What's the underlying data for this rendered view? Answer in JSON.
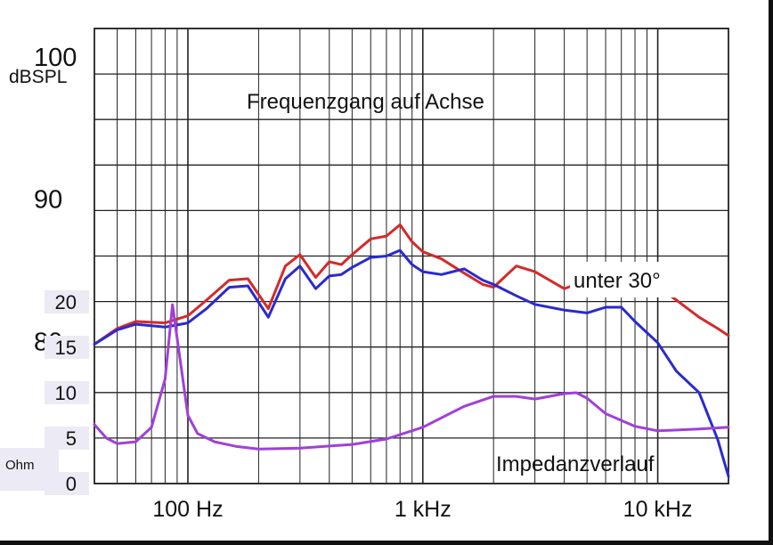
{
  "chart_data": {
    "type": "line",
    "x_scale": "log",
    "x_range": [
      40,
      20000
    ],
    "grid": true,
    "x_tick_labels": [
      {
        "x": 100,
        "label": "100 Hz"
      },
      {
        "x": 1000,
        "label": "1 kHz"
      },
      {
        "x": 10000,
        "label": "10 kHz"
      }
    ],
    "left_axis": {
      "spl_ticks": [
        {
          "value": 100,
          "label": "100"
        },
        {
          "value": 90,
          "label": "90"
        },
        {
          "value": 80,
          "label": "80"
        }
      ],
      "spl_unit": "dBSPL",
      "spl_range": [
        70,
        102
      ],
      "ohm_ticks": [
        {
          "value": 20,
          "label": "20"
        },
        {
          "value": 15,
          "label": "15"
        },
        {
          "value": 10,
          "label": "10"
        },
        {
          "value": 5,
          "label": "5"
        },
        {
          "value": 0,
          "label": "0"
        }
      ],
      "ohm_unit": "Ohm",
      "ohm_range": [
        0,
        20
      ]
    },
    "series": [
      {
        "name": "Frequenzgang auf Achse",
        "color": "#d42a2a",
        "axis": "spl",
        "points": [
          [
            40,
            79.8
          ],
          [
            50,
            80.9
          ],
          [
            60,
            81.4
          ],
          [
            80,
            81.3
          ],
          [
            100,
            81.8
          ],
          [
            120,
            82.9
          ],
          [
            150,
            84.3
          ],
          [
            180,
            84.4
          ],
          [
            220,
            82.3
          ],
          [
            260,
            85.3
          ],
          [
            300,
            86.1
          ],
          [
            350,
            84.5
          ],
          [
            400,
            85.6
          ],
          [
            450,
            85.4
          ],
          [
            500,
            86.1
          ],
          [
            600,
            87.2
          ],
          [
            700,
            87.4
          ],
          [
            800,
            88.2
          ],
          [
            900,
            87.0
          ],
          [
            1000,
            86.3
          ],
          [
            1200,
            85.8
          ],
          [
            1500,
            84.8
          ],
          [
            1800,
            84.0
          ],
          [
            2000,
            83.8
          ],
          [
            2500,
            85.3
          ],
          [
            3000,
            84.9
          ],
          [
            4000,
            83.7
          ],
          [
            5000,
            84.3
          ],
          [
            6000,
            85.3
          ],
          [
            7000,
            85.3
          ],
          [
            8000,
            84.6
          ],
          [
            10000,
            83.9
          ],
          [
            12000,
            82.9
          ],
          [
            15000,
            81.7
          ],
          [
            18000,
            80.9
          ],
          [
            20000,
            80.4
          ]
        ]
      },
      {
        "name": "unter 30°",
        "color": "#2a2ad0",
        "axis": "spl",
        "points": [
          [
            40,
            79.8
          ],
          [
            50,
            80.8
          ],
          [
            60,
            81.2
          ],
          [
            80,
            81.0
          ],
          [
            100,
            81.3
          ],
          [
            120,
            82.3
          ],
          [
            150,
            83.8
          ],
          [
            180,
            83.9
          ],
          [
            220,
            81.7
          ],
          [
            260,
            84.4
          ],
          [
            300,
            85.3
          ],
          [
            350,
            83.7
          ],
          [
            400,
            84.6
          ],
          [
            450,
            84.7
          ],
          [
            500,
            85.2
          ],
          [
            600,
            85.9
          ],
          [
            700,
            86.0
          ],
          [
            800,
            86.4
          ],
          [
            900,
            85.4
          ],
          [
            1000,
            84.9
          ],
          [
            1200,
            84.7
          ],
          [
            1500,
            85.1
          ],
          [
            1800,
            84.3
          ],
          [
            2000,
            84.0
          ],
          [
            2500,
            83.2
          ],
          [
            3000,
            82.6
          ],
          [
            4000,
            82.2
          ],
          [
            5000,
            82.0
          ],
          [
            6000,
            82.4
          ],
          [
            7000,
            82.4
          ],
          [
            8000,
            81.4
          ],
          [
            10000,
            79.9
          ],
          [
            12000,
            77.9
          ],
          [
            15000,
            76.4
          ],
          [
            18000,
            73.1
          ],
          [
            20000,
            70.5
          ]
        ]
      },
      {
        "name": "Impedanzverlauf",
        "color": "#a040d8",
        "axis": "ohm",
        "points": [
          [
            40,
            6.5
          ],
          [
            45,
            5.0
          ],
          [
            50,
            4.4
          ],
          [
            60,
            4.6
          ],
          [
            70,
            6.2
          ],
          [
            80,
            11.5
          ],
          [
            86,
            19.7
          ],
          [
            90,
            16.0
          ],
          [
            100,
            7.5
          ],
          [
            110,
            5.5
          ],
          [
            130,
            4.6
          ],
          [
            160,
            4.1
          ],
          [
            200,
            3.8
          ],
          [
            300,
            3.9
          ],
          [
            500,
            4.3
          ],
          [
            700,
            4.9
          ],
          [
            1000,
            6.2
          ],
          [
            1500,
            8.5
          ],
          [
            2000,
            9.6
          ],
          [
            2500,
            9.6
          ],
          [
            3000,
            9.3
          ],
          [
            4000,
            9.9
          ],
          [
            4500,
            10.0
          ],
          [
            5000,
            9.4
          ],
          [
            6000,
            7.7
          ],
          [
            8000,
            6.3
          ],
          [
            10000,
            5.8
          ],
          [
            15000,
            6.0
          ],
          [
            20000,
            6.2
          ]
        ]
      }
    ],
    "annotations": [
      {
        "text": "Frequenzgang auf Achse",
        "series": "Frequenzgang auf Achse"
      },
      {
        "text": "unter 30°",
        "series": "unter 30°"
      },
      {
        "text": "Impedanzverlauf",
        "series": "Impedanzverlauf"
      }
    ]
  }
}
